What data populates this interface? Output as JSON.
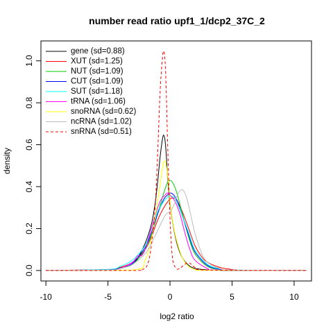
{
  "chart_data": {
    "type": "line",
    "title": "number read ratio upf1_1/dcp2_37C_2",
    "xlabel": "log2 ratio",
    "ylabel": "density",
    "xlim": [
      -10.4,
      11.4
    ],
    "ylim": [
      -0.05,
      1.095
    ],
    "x_ticks": [
      -10,
      -5,
      0,
      5,
      10
    ],
    "y_ticks": [
      0.0,
      0.2,
      0.4,
      0.6,
      0.8,
      1.0
    ],
    "x_tick_labels": [
      "-10",
      "-5",
      "0",
      "5",
      "10"
    ],
    "y_tick_labels": [
      "0.0",
      "0.2",
      "0.4",
      "0.6",
      "0.8",
      "1.0"
    ],
    "grid": false,
    "legend_position": "top-left",
    "series": [
      {
        "name": "gene (sd=0.88)",
        "color": "#000000",
        "dash": "solid",
        "x": [
          -10,
          -5,
          -4,
          -3,
          -2.5,
          -2,
          -1.5,
          -1.2,
          -1,
          -0.8,
          -0.6,
          -0.5,
          -0.4,
          -0.3,
          -0.2,
          0,
          0.3,
          0.6,
          1,
          1.5,
          2,
          3,
          4,
          5,
          11
        ],
        "y": [
          0,
          0.003,
          0.01,
          0.03,
          0.07,
          0.13,
          0.22,
          0.32,
          0.42,
          0.54,
          0.63,
          0.645,
          0.62,
          0.55,
          0.45,
          0.32,
          0.2,
          0.12,
          0.06,
          0.025,
          0.01,
          0.003,
          0.001,
          0,
          0
        ]
      },
      {
        "name": "XUT (sd=1.25)",
        "color": "#ff0000",
        "dash": "solid",
        "x": [
          -10,
          -5,
          -4,
          -3,
          -2,
          -1.5,
          -1,
          -0.5,
          0,
          0.3,
          0.6,
          1,
          1.5,
          2,
          2.5,
          3,
          4,
          5,
          6,
          11
        ],
        "y": [
          0,
          0.005,
          0.015,
          0.04,
          0.1,
          0.16,
          0.24,
          0.3,
          0.34,
          0.345,
          0.33,
          0.28,
          0.2,
          0.12,
          0.07,
          0.04,
          0.015,
          0.005,
          0.001,
          0
        ]
      },
      {
        "name": "NUT (sd=1.09)",
        "color": "#00cc00",
        "dash": "solid",
        "x": [
          -10,
          -5,
          -4,
          -3,
          -2,
          -1.5,
          -1,
          -0.5,
          -0.2,
          0,
          0.2,
          0.5,
          1,
          1.5,
          2,
          3,
          4,
          5,
          11
        ],
        "y": [
          0,
          0.004,
          0.012,
          0.03,
          0.1,
          0.17,
          0.27,
          0.37,
          0.42,
          0.43,
          0.42,
          0.38,
          0.27,
          0.16,
          0.08,
          0.02,
          0.005,
          0.001,
          0
        ]
      },
      {
        "name": "CUT (sd=1.09)",
        "color": "#0000ff",
        "dash": "solid",
        "x": [
          -10,
          -5,
          -4,
          -3,
          -2,
          -1.5,
          -1,
          -0.5,
          -0.2,
          0,
          0.3,
          0.6,
          1,
          1.5,
          2,
          3,
          4,
          5,
          11
        ],
        "y": [
          0,
          0.004,
          0.012,
          0.035,
          0.11,
          0.18,
          0.27,
          0.34,
          0.36,
          0.37,
          0.36,
          0.33,
          0.26,
          0.17,
          0.09,
          0.025,
          0.006,
          0.001,
          0
        ]
      },
      {
        "name": "SUT (sd=1.18)",
        "color": "#00ffff",
        "dash": "solid",
        "x": [
          -10,
          -5,
          -4,
          -3,
          -2,
          -1.5,
          -1,
          -0.5,
          -0.2,
          0,
          0.3,
          0.6,
          1,
          1.5,
          2,
          3,
          4,
          5,
          11
        ],
        "y": [
          0,
          0.005,
          0.02,
          0.05,
          0.12,
          0.2,
          0.28,
          0.33,
          0.35,
          0.355,
          0.35,
          0.32,
          0.26,
          0.18,
          0.1,
          0.03,
          0.008,
          0.002,
          0
        ]
      },
      {
        "name": "tRNA (sd=1.06)",
        "color": "#ff00ff",
        "dash": "solid",
        "x": [
          -10,
          -5,
          -4,
          -3,
          -2.6,
          -2.3,
          -2,
          -1.6,
          -1.2,
          -0.8,
          -0.4,
          -0.2,
          0,
          0.4,
          0.8,
          1.2,
          1.6,
          2,
          3,
          4,
          11
        ],
        "y": [
          0,
          0.002,
          0.01,
          0.04,
          0.07,
          0.07,
          0.1,
          0.18,
          0.26,
          0.33,
          0.36,
          0.37,
          0.36,
          0.33,
          0.27,
          0.18,
          0.1,
          0.05,
          0.01,
          0.002,
          0
        ]
      },
      {
        "name": "snoRNA (sd=0.62)",
        "color": "#ffff00",
        "dash": "solid",
        "x": [
          -10,
          -3,
          -2,
          -1.5,
          -1,
          -0.7,
          -0.5,
          -0.3,
          -0.1,
          0,
          0.2,
          0.5,
          1,
          1.5,
          2,
          3,
          11
        ],
        "y": [
          0,
          0.002,
          0.05,
          0.15,
          0.33,
          0.45,
          0.52,
          0.5,
          0.4,
          0.33,
          0.24,
          0.15,
          0.06,
          0.02,
          0.005,
          0.001,
          0
        ]
      },
      {
        "name": "ncRNA (sd=1.02)",
        "color": "#bbbbbb",
        "dash": "solid",
        "x": [
          -10,
          -5,
          -4,
          -3,
          -2,
          -1.5,
          -1,
          -0.6,
          -0.3,
          0,
          0.3,
          0.6,
          0.9,
          1.2,
          1.5,
          2,
          2.5,
          3,
          4,
          5,
          11
        ],
        "y": [
          0,
          0.002,
          0.01,
          0.03,
          0.08,
          0.13,
          0.19,
          0.24,
          0.27,
          0.28,
          0.31,
          0.36,
          0.385,
          0.37,
          0.31,
          0.18,
          0.09,
          0.04,
          0.01,
          0.002,
          0
        ]
      },
      {
        "name": "snRNA (sd=0.51)",
        "color": "#ff0000",
        "dash": "dashed",
        "x": [
          -10,
          -3,
          -2.2,
          -1.8,
          -1.5,
          -1.2,
          -1,
          -0.8,
          -0.6,
          -0.5,
          -0.4,
          -0.3,
          -0.2,
          0,
          0.2,
          0.5,
          0.8,
          1.2,
          1.6,
          2,
          3,
          11
        ],
        "y": [
          0,
          0,
          0.005,
          0.03,
          0.12,
          0.3,
          0.55,
          0.85,
          1.02,
          1.045,
          1.0,
          0.85,
          0.62,
          0.25,
          0.06,
          0.01,
          0.01,
          0.03,
          0.035,
          0.015,
          0.002,
          0
        ]
      }
    ]
  }
}
